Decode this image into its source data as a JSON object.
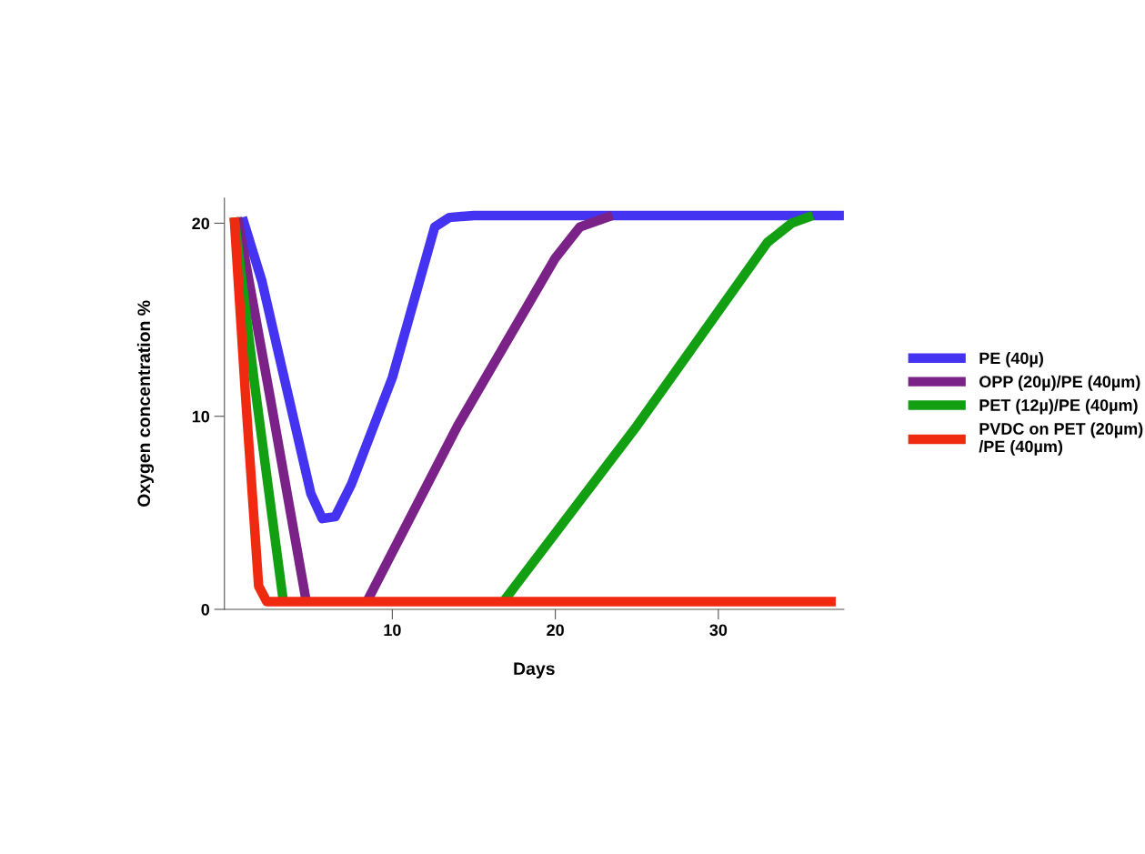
{
  "chart_data": {
    "type": "line",
    "xlabel": "Days",
    "ylabel": "Oxygen concentration %",
    "xlim": [
      -0.3,
      37.7
    ],
    "ylim": [
      0,
      21.3
    ],
    "xticks": [
      10,
      20,
      30
    ],
    "yticks": [
      0,
      10,
      20
    ],
    "grid": false,
    "legend": "right",
    "marker": "none",
    "line_style": "solid",
    "series": [
      {
        "name": "PE (40µ)",
        "color": "#4433f0",
        "x": [
          0.8,
          2,
          3.5,
          5,
          5.7,
          6.5,
          7.5,
          10,
          12.6,
          13.5,
          15,
          37.7
        ],
        "values": [
          20.3,
          17,
          11.5,
          6,
          4.7,
          4.8,
          6.5,
          12,
          19.8,
          20.3,
          20.4,
          20.4
        ]
      },
      {
        "name": "OPP (20µ)/PE (40µm)",
        "color": "#7a2288",
        "x": [
          0.5,
          2.5,
          4.7,
          4.8,
          8.5,
          14,
          20,
          21.5,
          23.5
        ],
        "values": [
          20.3,
          11,
          0.5,
          null,
          0.5,
          9.5,
          18.2,
          19.8,
          20.4
        ]
      },
      {
        "name": "PET (12µ)/PE (40µm)",
        "color": "#12a012",
        "x": [
          0.3,
          1.5,
          3.3,
          3.4,
          16.9,
          25,
          33,
          34.5,
          35.8
        ],
        "values": [
          20.3,
          12,
          0.5,
          null,
          0.5,
          9.5,
          19,
          20,
          20.4
        ]
      },
      {
        "name": "PVDC on PET (20µm)\n/PE (40µm)",
        "color": "#f02a10",
        "x": [
          0.3,
          1,
          1.8,
          2.3,
          37.2
        ],
        "values": [
          20.3,
          11,
          1.2,
          0.4,
          0.4
        ]
      }
    ]
  }
}
